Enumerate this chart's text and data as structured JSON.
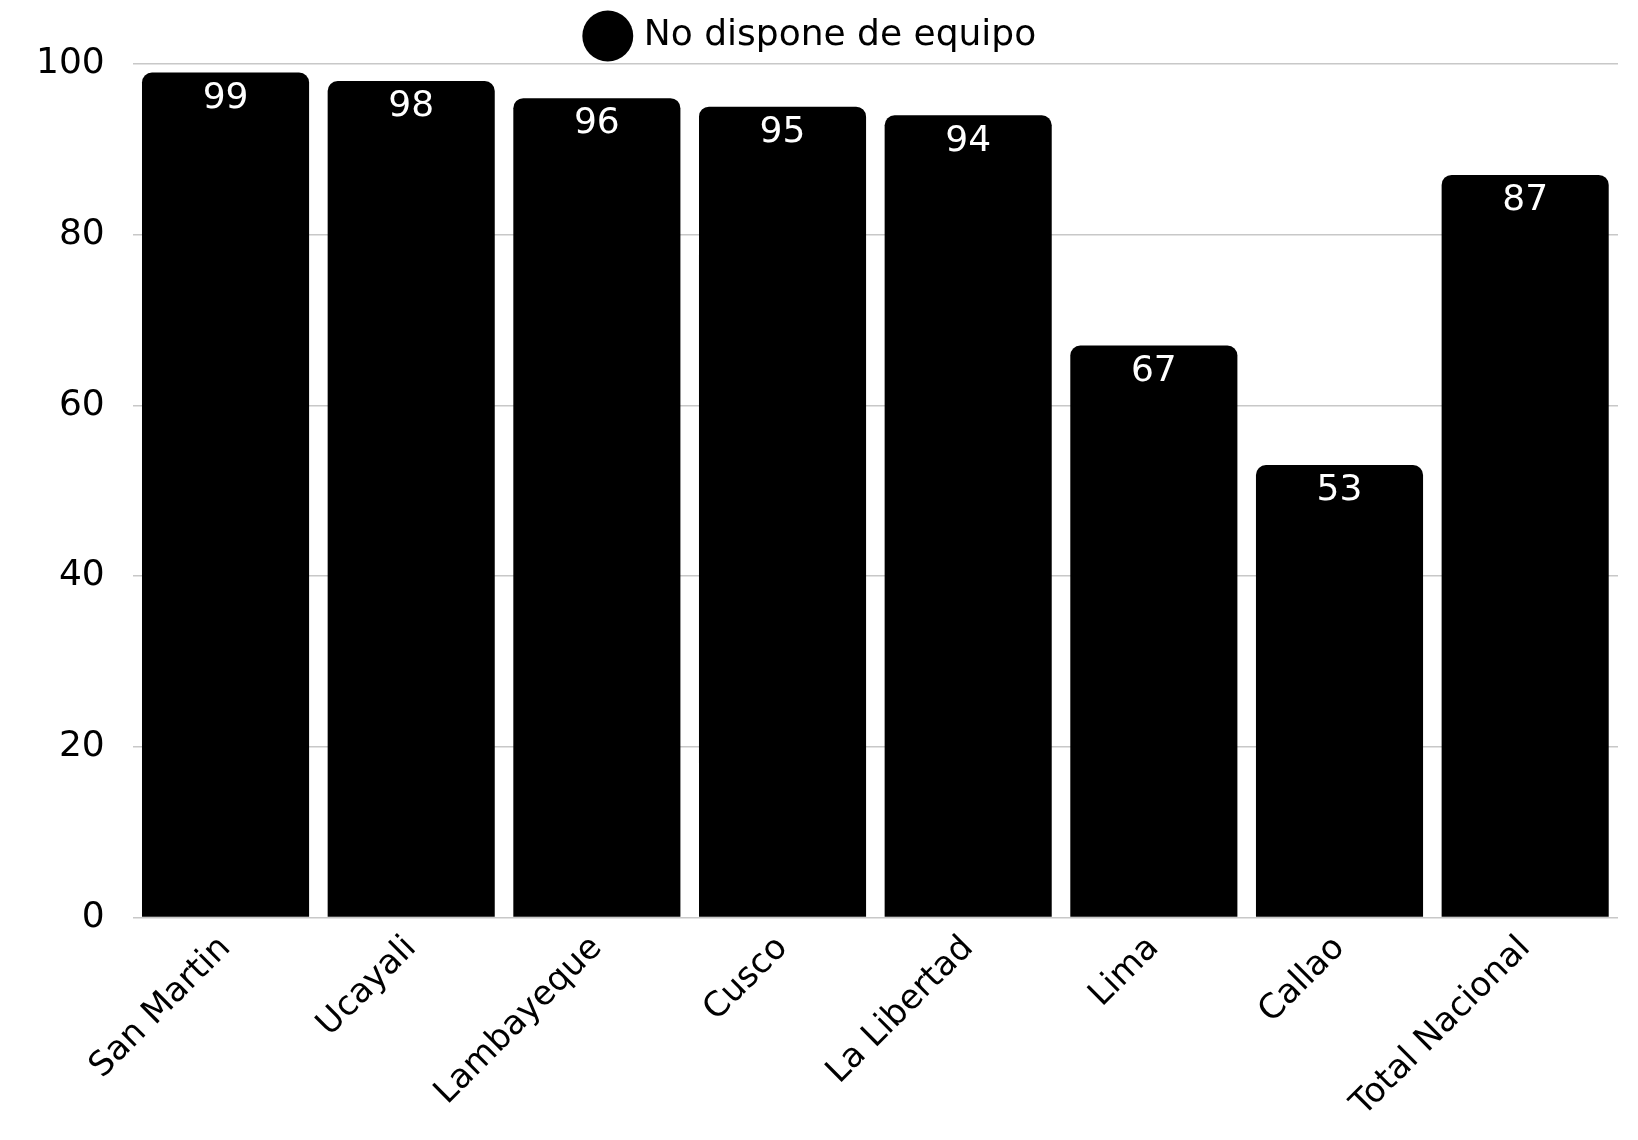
{
  "chart_data": {
    "type": "bar",
    "categories": [
      "San Martin",
      "Ucayali",
      "Lambayeque",
      "Cusco",
      "La Libertad",
      "Lima",
      "Callao",
      "Total Nacional"
    ],
    "series": [
      {
        "name": "No dispone de equipo",
        "color": "#000000",
        "values": [
          99,
          98,
          96,
          95,
          94,
          67,
          53,
          87
        ]
      }
    ],
    "ylim": [
      0,
      100
    ],
    "yticks": [
      0,
      20,
      40,
      60,
      80,
      100
    ],
    "grid": "y",
    "legend": "top",
    "data_labels": true
  }
}
